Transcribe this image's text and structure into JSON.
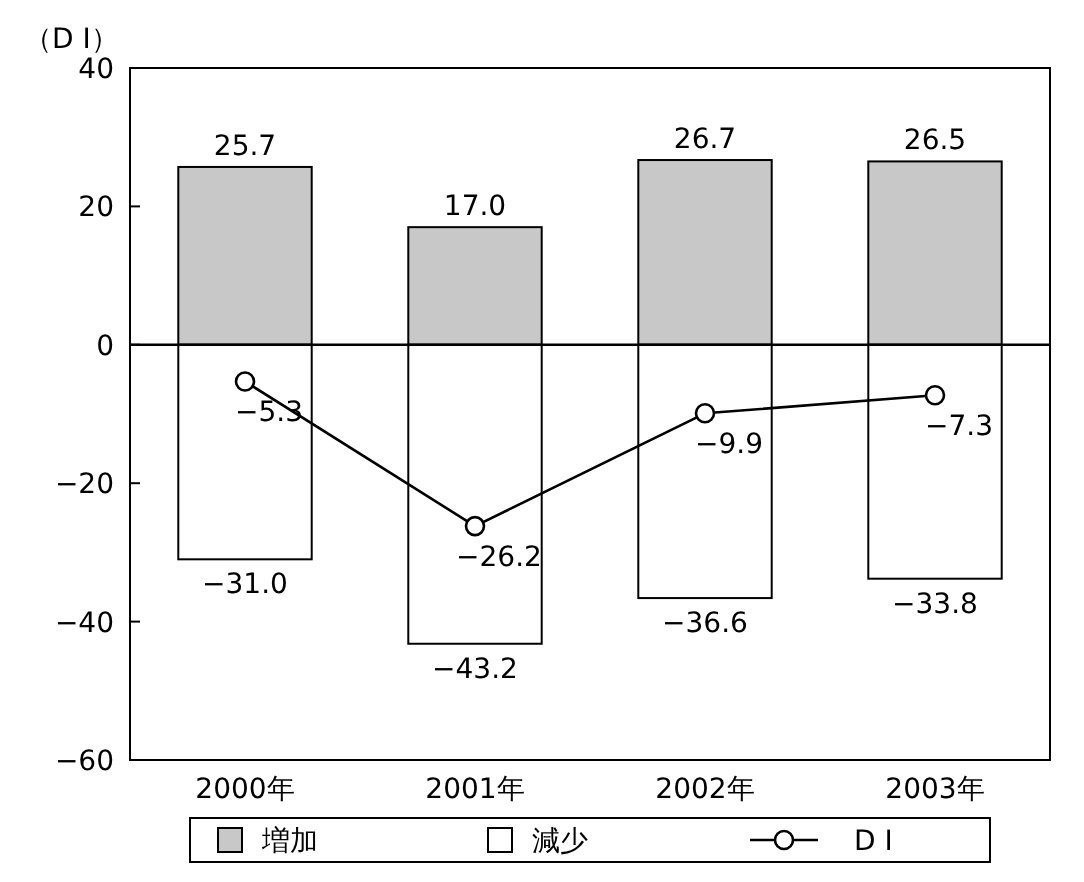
{
  "chart_data": {
    "type": "bar",
    "stacked": true,
    "ylabel": "（D I）",
    "categories": [
      "2000年",
      "2001年",
      "2002年",
      "2003年"
    ],
    "ylim": [
      -60,
      40
    ],
    "yticks": [
      {
        "value": -60,
        "label": "−60"
      },
      {
        "value": -40,
        "label": "−40"
      },
      {
        "value": -20,
        "label": "−20"
      },
      0,
      20,
      40
    ],
    "series": [
      {
        "name": "増加",
        "color": "#c8c8c8",
        "values": [
          25.7,
          17.0,
          26.7,
          26.5
        ],
        "value_labels": [
          "25.7",
          "17.0",
          "26.7",
          "26.5"
        ]
      },
      {
        "name": "減少",
        "color": "#ffffff",
        "values": [
          -31.0,
          -43.2,
          -36.6,
          -33.8
        ],
        "value_labels": [
          "−31.0",
          "−43.2",
          "−36.6",
          "−33.8"
        ]
      },
      {
        "name": "D I",
        "type": "line",
        "color": "#000000",
        "marker": "circle",
        "values": [
          -5.3,
          -26.2,
          -9.9,
          -7.3
        ],
        "value_labels": [
          "−5.3",
          "−26.2",
          "−9.9",
          "−7.3"
        ]
      }
    ],
    "legend": "bottom"
  }
}
